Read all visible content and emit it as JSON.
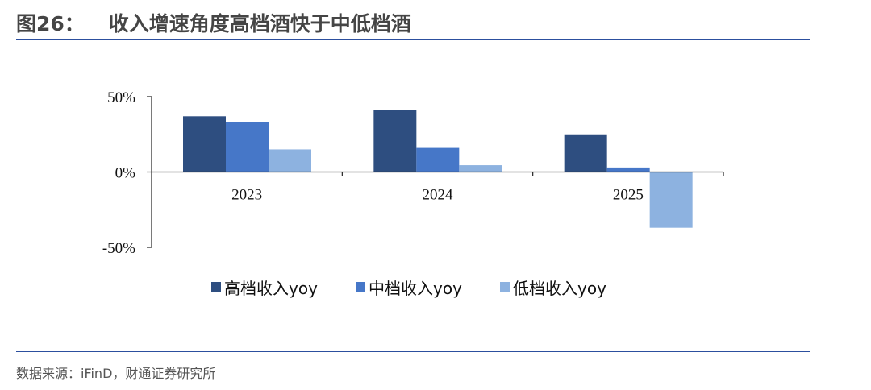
{
  "header": {
    "figure_number": "图26：",
    "title": "收入增速角度高档酒快于中低档酒"
  },
  "footer": {
    "source": "数据来源：iFinD，财通证券研究所"
  },
  "chart_data": {
    "type": "bar",
    "categories": [
      "2023",
      "2024",
      "2025"
    ],
    "series": [
      {
        "name": "高档收入yoy",
        "values": [
          37,
          41,
          25
        ],
        "color": "#2e4e80"
      },
      {
        "name": "中档收入yoy",
        "values": [
          33,
          16,
          3
        ],
        "color": "#4677c8"
      },
      {
        "name": "低档收入yoy",
        "values": [
          15,
          4.5,
          -37
        ],
        "color": "#8db2e0"
      }
    ],
    "ylim": [
      -50,
      50
    ],
    "ytick_values": [
      -50,
      0,
      50
    ],
    "ytick_labels": [
      "-50%",
      "0%",
      "50%"
    ],
    "legend_position": "bottom",
    "grid": false
  }
}
